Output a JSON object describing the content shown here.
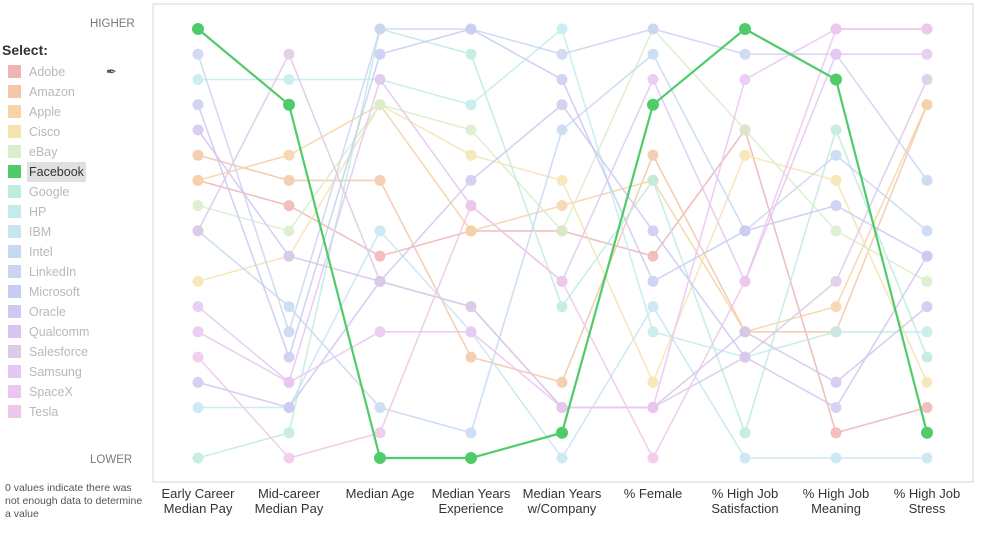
{
  "legend": {
    "title": "Select:"
  },
  "axis": {
    "higher": "HIGHER",
    "lower": "LOWER"
  },
  "note": "0 values indicate there was not enough data to determine a value",
  "colors": {
    "accent": "#4fcb6a"
  },
  "chart_data": {
    "type": "line",
    "subtype": "parallel-coordinates-rank",
    "ylim": [
      1,
      18
    ],
    "categories": [
      [
        "Early Career",
        "Median Pay"
      ],
      [
        "Mid-career",
        "Median Pay"
      ],
      [
        "Median Age"
      ],
      [
        "Median Years",
        "Experience"
      ],
      [
        "Median Years",
        "w/Company"
      ],
      [
        "% Female"
      ],
      [
        "% High Job",
        "Satisfaction"
      ],
      [
        "% High Job",
        "Meaning"
      ],
      [
        "% High Job",
        "Stress"
      ]
    ],
    "highlighted": "Facebook",
    "series": [
      {
        "name": "Adobe",
        "color": "#f2b3b3",
        "values": [
          12,
          11,
          9,
          10,
          10,
          9,
          14,
          2,
          3
        ]
      },
      {
        "name": "Amazon",
        "color": "#f4c7a8",
        "values": [
          13,
          12,
          12,
          5,
          4,
          13,
          6,
          6,
          15
        ]
      },
      {
        "name": "Apple",
        "color": "#f6d4a6",
        "values": [
          12,
          13,
          15,
          10,
          11,
          12,
          6,
          7,
          15
        ]
      },
      {
        "name": "Cisco",
        "color": "#f5e4b0",
        "values": [
          8,
          9,
          15,
          13,
          12,
          4,
          13,
          12,
          4
        ]
      },
      {
        "name": "eBay",
        "color": "#d9eecc",
        "values": [
          11,
          10,
          15,
          14,
          10,
          18,
          14,
          10,
          8
        ]
      },
      {
        "name": "Facebook",
        "color": "#4fcb6a",
        "values": [
          18,
          15,
          1,
          1,
          2,
          15,
          18,
          16,
          2
        ]
      },
      {
        "name": "Google",
        "color": "#bfecdf",
        "values": [
          1,
          2,
          18,
          17,
          7,
          12,
          2,
          14,
          5
        ]
      },
      {
        "name": "HP",
        "color": "#c2ecec",
        "values": [
          16,
          16,
          16,
          15,
          18,
          6,
          5,
          6,
          6
        ]
      },
      {
        "name": "IBM",
        "color": "#c6e6f2",
        "values": [
          3,
          3,
          10,
          6,
          1,
          7,
          1,
          1,
          1
        ]
      },
      {
        "name": "Intel",
        "color": "#c6d9f2",
        "values": [
          10,
          7,
          3,
          2,
          14,
          17,
          10,
          13,
          10
        ]
      },
      {
        "name": "LinkedIn",
        "color": "#c9d6f2",
        "values": [
          17,
          6,
          18,
          18,
          17,
          18,
          17,
          17,
          12
        ]
      },
      {
        "name": "Microsoft",
        "color": "#c8ccf2",
        "values": [
          15,
          5,
          17,
          18,
          16,
          8,
          10,
          11,
          9
        ]
      },
      {
        "name": "Oracle",
        "color": "#cfc8f2",
        "values": [
          4,
          3,
          8,
          12,
          15,
          10,
          5,
          3,
          9
        ]
      },
      {
        "name": "Qualcomm",
        "color": "#d5c5f0",
        "values": [
          14,
          9,
          8,
          7,
          3,
          3,
          6,
          4,
          7
        ]
      },
      {
        "name": "Salesforce",
        "color": "#dccbe6",
        "values": [
          10,
          17,
          8,
          7,
          3,
          3,
          5,
          8,
          16
        ]
      },
      {
        "name": "Samsung",
        "color": "#e3c8f2",
        "values": [
          7,
          4,
          16,
          11,
          8,
          16,
          8,
          17,
          17
        ]
      },
      {
        "name": "SpaceX",
        "color": "#ebc6f2",
        "values": [
          6,
          4,
          6,
          6,
          3,
          3,
          16,
          18,
          18
        ]
      },
      {
        "name": "Tesla",
        "color": "#efc7ea",
        "values": [
          5,
          1,
          2,
          11,
          8,
          1,
          8,
          18,
          18
        ]
      }
    ]
  }
}
